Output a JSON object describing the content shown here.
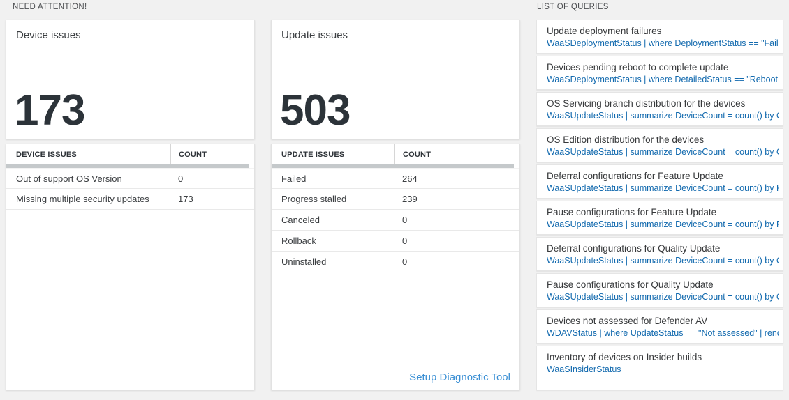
{
  "sections": {
    "need_attention": "NEED ATTENTION!",
    "list_of_queries": "LIST OF QUERIES"
  },
  "device_card": {
    "title": "Device issues",
    "value": "173"
  },
  "device_table": {
    "columns": [
      "DEVICE ISSUES",
      "COUNT"
    ],
    "rows": [
      {
        "label": "Out of support OS Version",
        "count": "0"
      },
      {
        "label": "Missing multiple security updates",
        "count": "173"
      }
    ]
  },
  "update_card": {
    "title": "Update issues",
    "value": "503"
  },
  "update_table": {
    "columns": [
      "UPDATE ISSUES",
      "COUNT"
    ],
    "rows": [
      {
        "label": "Failed",
        "count": "264"
      },
      {
        "label": "Progress stalled",
        "count": "239"
      },
      {
        "label": "Canceled",
        "count": "0"
      },
      {
        "label": "Rollback",
        "count": "0"
      },
      {
        "label": "Uninstalled",
        "count": "0"
      }
    ],
    "footer_link": "Setup Diagnostic Tool"
  },
  "queries": {
    "items": [
      {
        "title": "Update deployment failures",
        "query": "WaaSDeploymentStatus | where DeploymentStatus == \"Failed\" |..."
      },
      {
        "title": "Devices pending reboot to complete update",
        "query": "WaaSDeploymentStatus | where DetailedStatus == \"Reboot pend..."
      },
      {
        "title": "OS Servicing branch distribution for the devices",
        "query": "WaaSUpdateStatus | summarize DeviceCount = count() by OSSer..."
      },
      {
        "title": "OS Edition distribution for the devices",
        "query": "WaaSUpdateStatus | summarize DeviceCount = count() by OSEdit..."
      },
      {
        "title": "Deferral configurations for Feature Update",
        "query": "WaaSUpdateStatus | summarize DeviceCount = count() by Featur..."
      },
      {
        "title": "Pause configurations for Feature Update",
        "query": "WaaSUpdateStatus | summarize DeviceCount = count() by Featur..."
      },
      {
        "title": "Deferral configurations for Quality Update",
        "query": "WaaSUpdateStatus | summarize DeviceCount = count() by Qualit..."
      },
      {
        "title": "Pause configurations for Quality Update",
        "query": "WaaSUpdateStatus | summarize DeviceCount = count() by Qualit..."
      },
      {
        "title": "Devices not assessed for Defender AV",
        "query": "WDAVStatus | where UpdateStatus == \"Not assessed\" | render ta..."
      },
      {
        "title": "Inventory of devices on Insider builds",
        "query": "WaaSInsiderStatus"
      }
    ]
  },
  "colors": {
    "background": "#f1f1f1",
    "card_background": "#ffffff",
    "card_border": "#e2e2e2",
    "big_number": "#2c3339",
    "query_link_blue": "#1169ae",
    "setup_link_blue": "#3a8fd4",
    "scrollbar_gray": "#c5c9cb"
  }
}
